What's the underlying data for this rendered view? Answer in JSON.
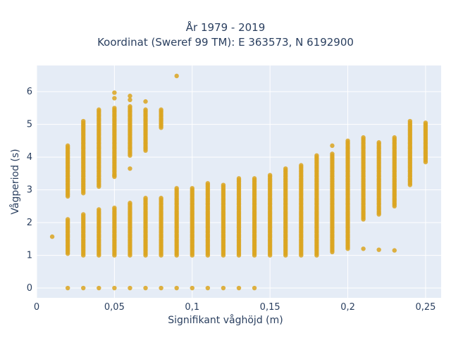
{
  "chart_data": {
    "type": "scatter",
    "title_line1": "År 1979 - 2019",
    "title_line2": "Koordinat (Sweref 99 TM): E 363573, N 6192900",
    "xlabel": "Signifikant våghöjd (m)",
    "ylabel": "Vågperiod (s)",
    "xlim": [
      0,
      0.26
    ],
    "ylim": [
      -0.3,
      6.8
    ],
    "x_ticks": [
      0,
      0.05,
      0.1,
      0.15,
      0.2,
      0.25
    ],
    "x_tick_labels": [
      "0",
      "0,05",
      "0,1",
      "0,15",
      "0,2",
      "0,25"
    ],
    "y_ticks": [
      0,
      1,
      2,
      3,
      4,
      5,
      6
    ],
    "y_tick_labels": [
      "0",
      "1",
      "2",
      "3",
      "4",
      "5",
      "6"
    ],
    "grid": true,
    "marker_color": "#DAA520",
    "columns": [
      {
        "x": 0.01,
        "ranges": [],
        "points": [
          1.57
        ]
      },
      {
        "x": 0.02,
        "ranges": [
          [
            1.05,
            2.1
          ],
          [
            2.8,
            4.35
          ]
        ],
        "points": [
          0
        ]
      },
      {
        "x": 0.03,
        "ranges": [
          [
            1.0,
            2.25
          ],
          [
            2.9,
            5.1
          ]
        ],
        "points": [
          0
        ]
      },
      {
        "x": 0.04,
        "ranges": [
          [
            1.0,
            2.4
          ],
          [
            3.1,
            5.45
          ]
        ],
        "points": [
          0
        ]
      },
      {
        "x": 0.05,
        "ranges": [
          [
            1.0,
            2.45
          ],
          [
            3.4,
            5.5
          ]
        ],
        "points": [
          0,
          5.97,
          5.8,
          3.45
        ]
      },
      {
        "x": 0.06,
        "ranges": [
          [
            1.0,
            2.6
          ],
          [
            4.05,
            5.55
          ]
        ],
        "points": [
          0,
          5.87,
          5.75,
          3.65
        ]
      },
      {
        "x": 0.07,
        "ranges": [
          [
            1.0,
            2.75
          ],
          [
            4.2,
            5.45
          ]
        ],
        "points": [
          0,
          5.7
        ]
      },
      {
        "x": 0.08,
        "ranges": [
          [
            1.0,
            2.75
          ],
          [
            4.9,
            5.45
          ]
        ],
        "points": [
          0
        ]
      },
      {
        "x": 0.09,
        "ranges": [
          [
            1.0,
            3.05
          ]
        ],
        "points": [
          0,
          6.48
        ]
      },
      {
        "x": 0.1,
        "ranges": [
          [
            1.0,
            3.05
          ]
        ],
        "points": [
          0
        ]
      },
      {
        "x": 0.11,
        "ranges": [
          [
            1.0,
            3.2
          ]
        ],
        "points": [
          0
        ]
      },
      {
        "x": 0.12,
        "ranges": [
          [
            1.0,
            3.15
          ]
        ],
        "points": [
          0
        ]
      },
      {
        "x": 0.13,
        "ranges": [
          [
            1.0,
            3.35
          ]
        ],
        "points": [
          0
        ]
      },
      {
        "x": 0.14,
        "ranges": [
          [
            1.0,
            3.35
          ]
        ],
        "points": [
          0
        ]
      },
      {
        "x": 0.15,
        "ranges": [
          [
            1.0,
            3.45
          ]
        ],
        "points": []
      },
      {
        "x": 0.16,
        "ranges": [
          [
            1.0,
            3.65
          ]
        ],
        "points": []
      },
      {
        "x": 0.17,
        "ranges": [
          [
            1.0,
            3.75
          ]
        ],
        "points": []
      },
      {
        "x": 0.18,
        "ranges": [
          [
            1.0,
            4.05
          ]
        ],
        "points": []
      },
      {
        "x": 0.19,
        "ranges": [
          [
            1.1,
            4.1
          ]
        ],
        "points": [
          4.35
        ]
      },
      {
        "x": 0.2,
        "ranges": [
          [
            1.2,
            4.5
          ]
        ],
        "points": []
      },
      {
        "x": 0.21,
        "ranges": [
          [
            2.1,
            4.6
          ]
        ],
        "points": [
          1.2
        ]
      },
      {
        "x": 0.22,
        "ranges": [
          [
            2.25,
            4.45
          ]
        ],
        "points": [
          1.17
        ]
      },
      {
        "x": 0.23,
        "ranges": [
          [
            2.5,
            4.6
          ]
        ],
        "points": [
          1.15
        ]
      },
      {
        "x": 0.24,
        "ranges": [
          [
            3.15,
            5.1
          ]
        ],
        "points": []
      },
      {
        "x": 0.25,
        "ranges": [
          [
            3.85,
            5.05
          ]
        ],
        "points": []
      }
    ]
  }
}
